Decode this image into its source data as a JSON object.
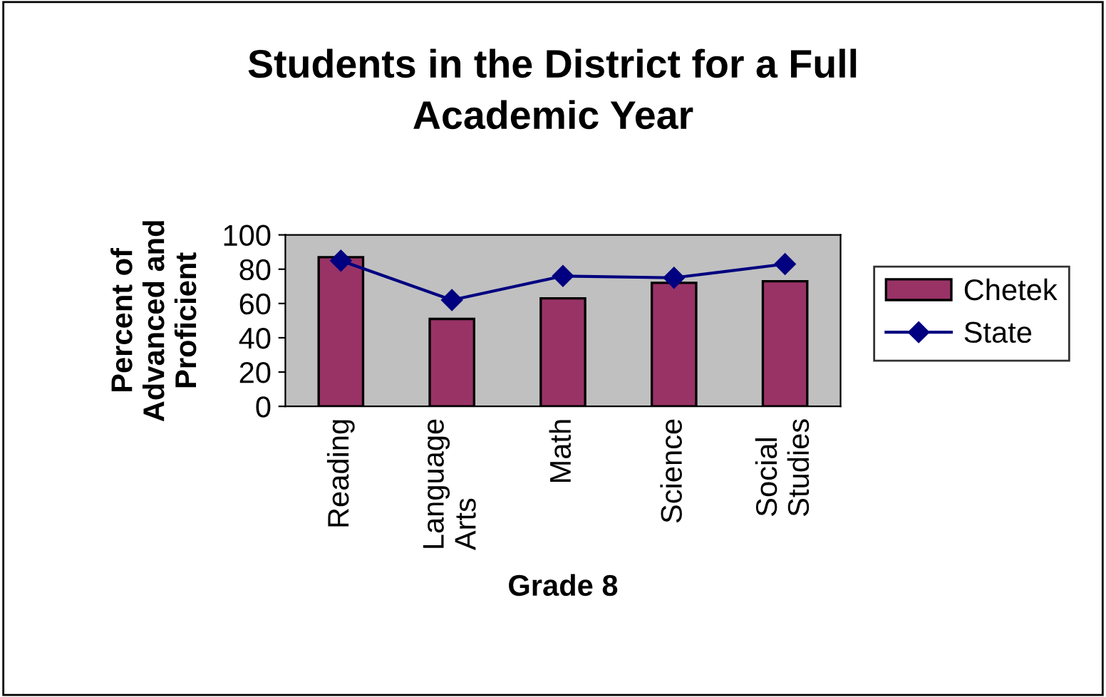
{
  "chart_data": {
    "type": "bar",
    "title": "Students in the District for a Full\nAcademic Year",
    "xlabel": "Grade 8",
    "ylabel": "Percent of\nAdvanced and\nProficient",
    "categories": [
      "Reading",
      "Language\nArts",
      "Math",
      "Science",
      "Social\nStudies"
    ],
    "series": [
      {
        "name": "Chetek",
        "color": "#993366",
        "values": [
          87,
          51,
          63,
          72,
          73
        ]
      },
      {
        "name": "State",
        "type": "line",
        "color": "#000080",
        "values": [
          85,
          62,
          76,
          75,
          83
        ]
      }
    ],
    "ylim": [
      0,
      100
    ],
    "yticks": [
      0,
      20,
      40,
      60,
      80,
      100
    ],
    "grid": false,
    "legend": "right",
    "marker": "diamond",
    "line_style": "solid"
  }
}
